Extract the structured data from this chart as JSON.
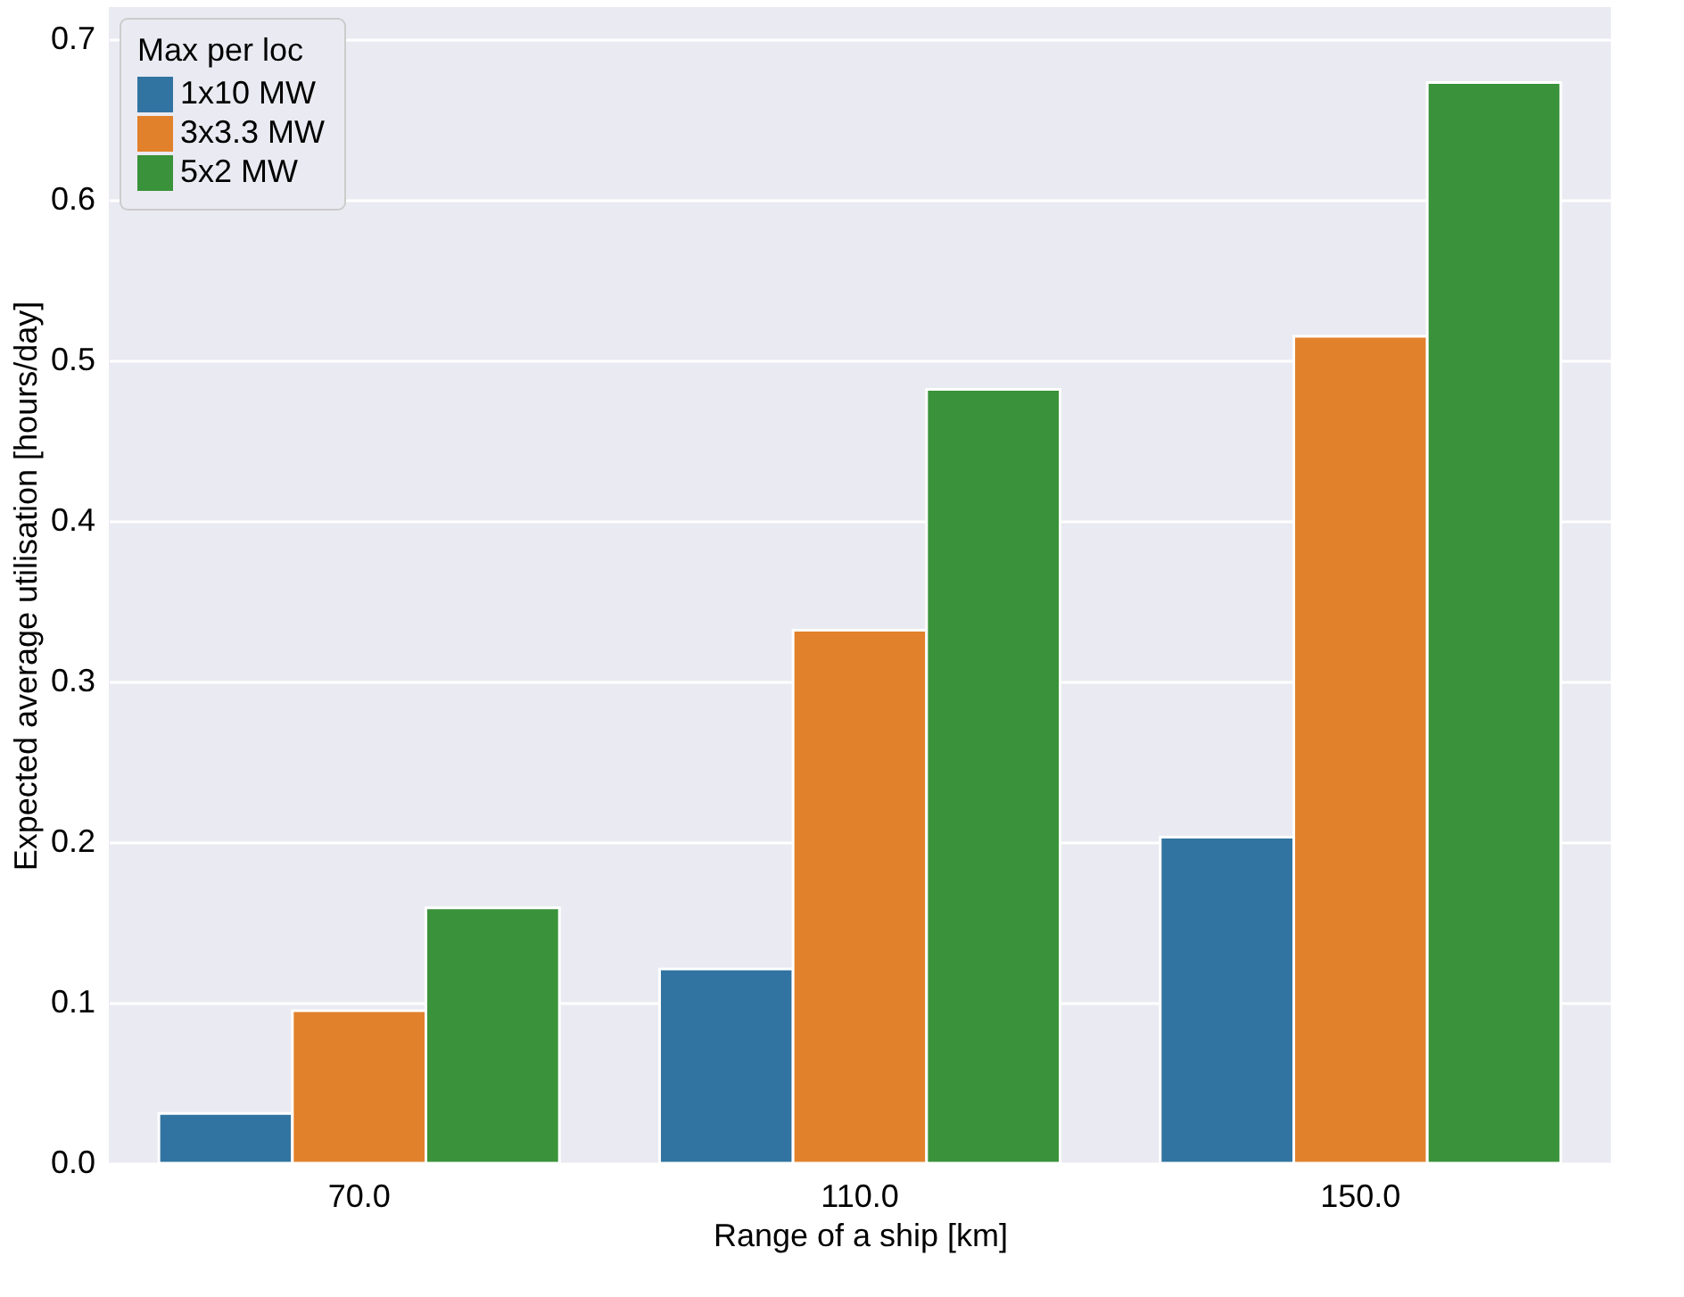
{
  "chart_data": {
    "type": "bar",
    "xlabel": "Range of a ship [km]",
    "ylabel": "Expected average utilisation [hours/day]",
    "legend_title": "Max per loc",
    "categories": [
      "70.0",
      "110.0",
      "150.0"
    ],
    "series": [
      {
        "name": "1x10 MW",
        "color": "#3274a1",
        "values": [
          0.031,
          0.121,
          0.203
        ]
      },
      {
        "name": "3x3.3 MW",
        "color": "#e1812c",
        "values": [
          0.095,
          0.332,
          0.515
        ]
      },
      {
        "name": "5x2 MW",
        "color": "#3a923a",
        "values": [
          0.159,
          0.482,
          0.673
        ]
      }
    ],
    "ylim": [
      0,
      0.72
    ],
    "yticks": [
      {
        "value": 0,
        "label": "0.0"
      },
      {
        "value": 0.1,
        "label": "0.1"
      },
      {
        "value": 0.2,
        "label": "0.2"
      },
      {
        "value": 0.3,
        "label": "0.3"
      },
      {
        "value": 0.4,
        "label": "0.4"
      },
      {
        "value": 0.5,
        "label": "0.5"
      },
      {
        "value": 0.6,
        "label": "0.6"
      },
      {
        "value": 0.7,
        "label": "0.7"
      }
    ],
    "grid": "y",
    "legend": "top left"
  }
}
